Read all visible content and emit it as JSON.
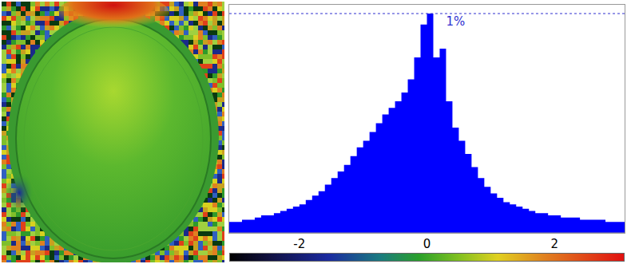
{
  "chart_data": {
    "type": "histogram",
    "bins": [
      -3.1,
      -3.0,
      -2.9,
      -2.8,
      -2.7,
      -2.6,
      -2.5,
      -2.4,
      -2.3,
      -2.2,
      -2.1,
      -2.0,
      -1.9,
      -1.8,
      -1.7,
      -1.6,
      -1.5,
      -1.4,
      -1.3,
      -1.2,
      -1.1,
      -1.0,
      -0.9,
      -0.8,
      -0.7,
      -0.6,
      -0.5,
      -0.4,
      -0.3,
      -0.2,
      -0.1,
      0.0,
      0.1,
      0.2,
      0.3,
      0.4,
      0.5,
      0.6,
      0.7,
      0.8,
      0.9,
      1.0,
      1.1,
      1.2,
      1.3,
      1.4,
      1.5,
      1.6,
      1.7,
      1.8,
      1.9,
      2.0,
      2.1,
      2.2,
      2.3,
      2.4,
      2.5,
      2.6,
      2.7,
      2.8,
      2.9,
      3.0,
      3.1
    ],
    "counts": [
      0.05,
      0.05,
      0.06,
      0.06,
      0.07,
      0.08,
      0.08,
      0.09,
      0.1,
      0.11,
      0.12,
      0.13,
      0.15,
      0.17,
      0.19,
      0.22,
      0.25,
      0.28,
      0.31,
      0.35,
      0.39,
      0.42,
      0.46,
      0.5,
      0.54,
      0.57,
      0.6,
      0.64,
      0.7,
      0.8,
      0.95,
      1.0,
      0.8,
      0.84,
      0.6,
      0.48,
      0.42,
      0.36,
      0.3,
      0.25,
      0.21,
      0.18,
      0.16,
      0.14,
      0.13,
      0.12,
      0.11,
      0.1,
      0.09,
      0.09,
      0.08,
      0.08,
      0.07,
      0.07,
      0.07,
      0.06,
      0.06,
      0.06,
      0.06,
      0.05,
      0.05,
      0.05
    ],
    "color": "#0000ff",
    "xlim": [
      -3.1,
      3.1
    ],
    "xticks": [
      -2,
      0,
      2
    ],
    "ylim": [
      0,
      1.04
    ],
    "tick_labels": "x",
    "reference_lines": [
      {
        "value": 1,
        "label": "1%",
        "line_style": "dashed"
      }
    ]
  }
}
